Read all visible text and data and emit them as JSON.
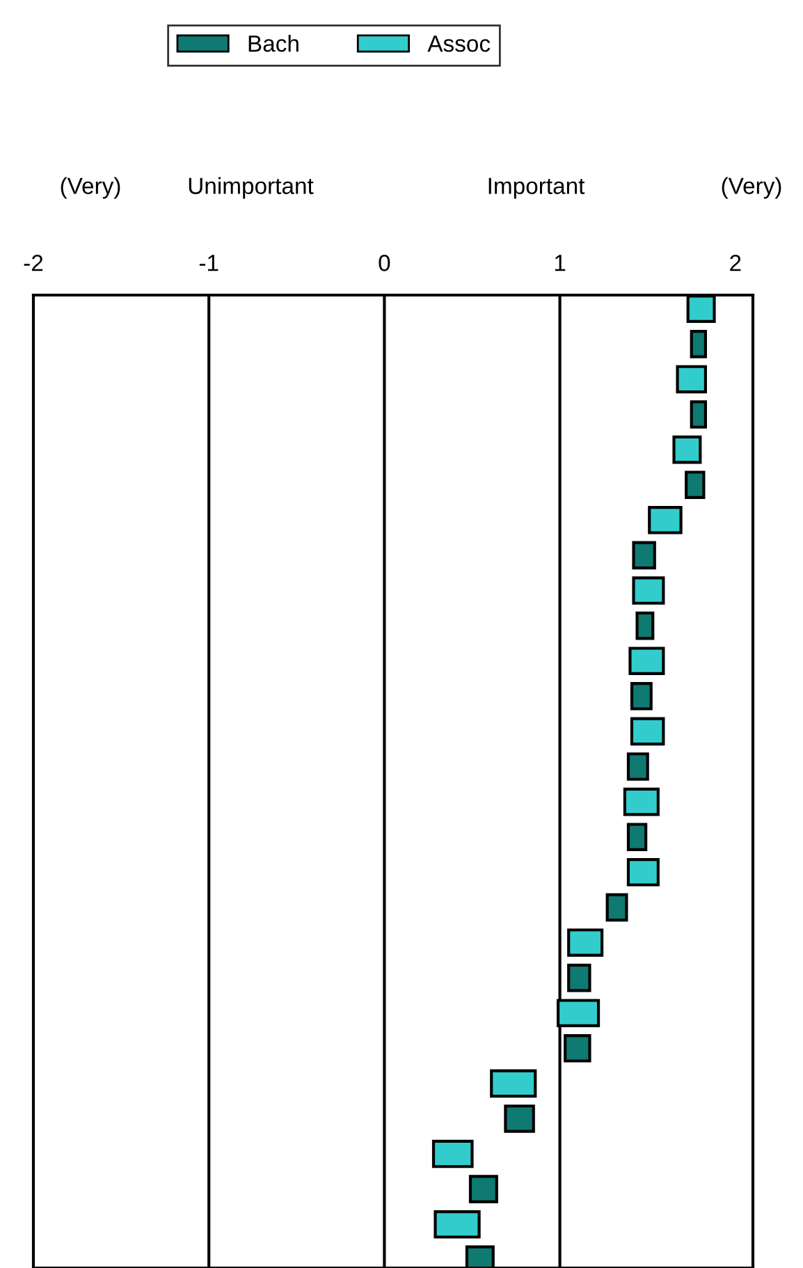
{
  "chart_data": {
    "type": "bar",
    "orientation": "horizontal",
    "categories": [
      null,
      null,
      null,
      null,
      null,
      null,
      null,
      null,
      null,
      null,
      null,
      null,
      null,
      null
    ],
    "series": [
      {
        "name": "Bach",
        "color": "#0e7a72",
        "base": [
          1.75,
          1.75,
          1.72,
          1.42,
          1.44,
          1.41,
          1.39,
          1.39,
          1.27,
          1.05,
          1.03,
          0.69,
          0.49,
          0.47
        ],
        "values": [
          0.08,
          0.08,
          0.1,
          0.12,
          0.09,
          0.11,
          0.11,
          0.1,
          0.11,
          0.12,
          0.14,
          0.16,
          0.15,
          0.15
        ]
      },
      {
        "name": "Assoc",
        "color": "#33cccc",
        "base": [
          1.73,
          1.67,
          1.65,
          1.51,
          1.42,
          1.4,
          1.41,
          1.37,
          1.39,
          1.05,
          0.99,
          0.61,
          0.28,
          0.29
        ],
        "values": [
          0.15,
          0.16,
          0.15,
          0.18,
          0.17,
          0.19,
          0.18,
          0.19,
          0.17,
          0.19,
          0.23,
          0.25,
          0.22,
          0.25
        ]
      }
    ],
    "xlim": [
      -2,
      2.1
    ],
    "xticks": [
      -2,
      -1,
      0,
      1,
      2
    ],
    "ref_lines": [
      {
        "axis": "x",
        "value": -1,
        "color": "#000000"
      },
      {
        "axis": "x",
        "value": 0,
        "color": "#000000"
      },
      {
        "axis": "x",
        "value": 1,
        "color": "#000000"
      }
    ],
    "annotations": [
      "(Very)",
      "Unimportant",
      "Important",
      "(Very)"
    ],
    "legend": "top",
    "grid": false
  }
}
